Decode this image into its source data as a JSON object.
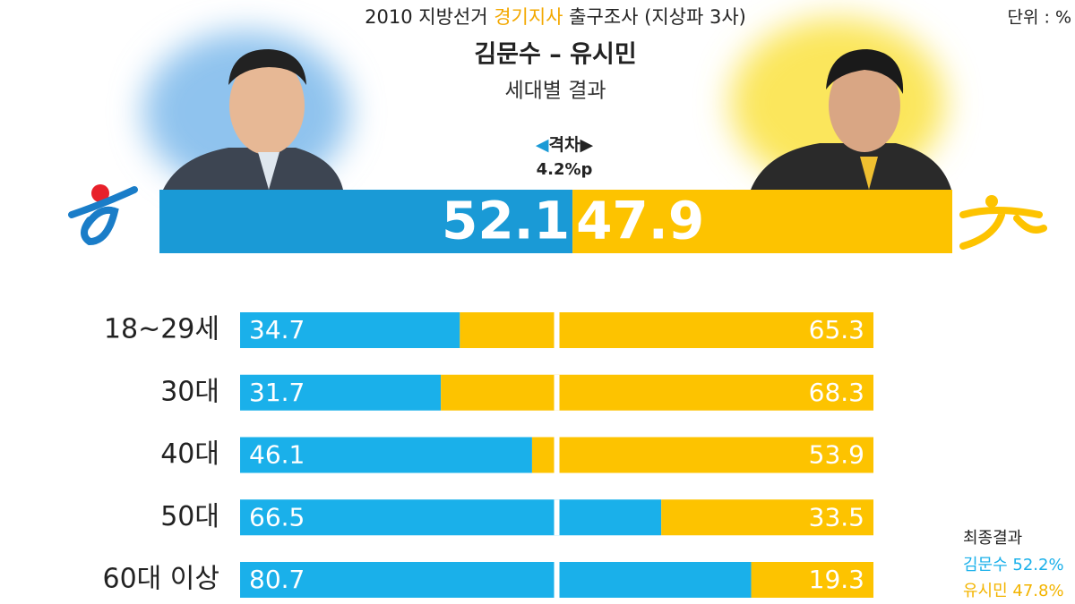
{
  "chart_data": {
    "type": "stacked-bar-h",
    "title_parts": [
      "2010 지방선거 ",
      "경기지사",
      " 출구조사 (지상파 3사)"
    ],
    "unit": "단위 : %",
    "headline": "김문수 – 유시민",
    "subtitle": "세대별 결과",
    "gap": {
      "label": "격차",
      "value": "4.2%p"
    },
    "overall": {
      "values": [
        52.1,
        47.9
      ]
    },
    "categories": [
      "18~29세",
      "30대",
      "40대",
      "50대",
      "60대 이상"
    ],
    "series": [
      {
        "color": "#1ab0ea",
        "values": [
          34.7,
          31.7,
          46.1,
          66.5,
          80.7
        ]
      },
      {
        "color": "#fdc300",
        "values": [
          65.3,
          68.3,
          53.9,
          33.5,
          19.3
        ]
      }
    ],
    "overall_colors": [
      "#1a9ad6",
      "#fdc300"
    ],
    "xlim": [
      0,
      100
    ],
    "final": {
      "label": "최종결과",
      "entries": [
        "김문수 52.2%",
        "유시민 47.8%"
      ]
    }
  }
}
